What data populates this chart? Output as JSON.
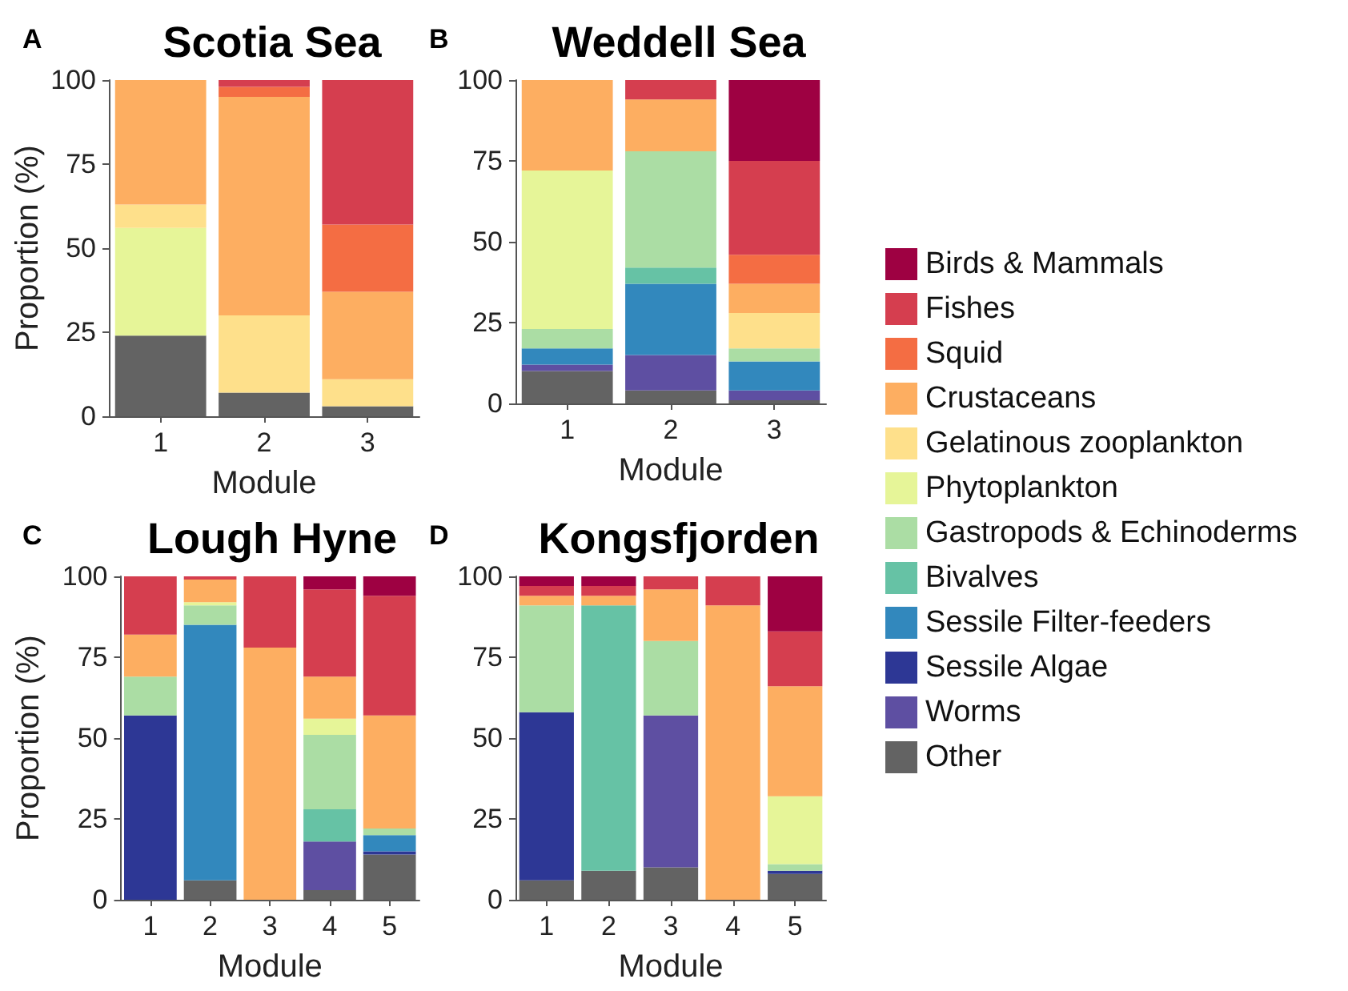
{
  "chart_data": [
    {
      "type": "bar",
      "stacked": true,
      "title": "Scotia Sea",
      "annotations": [
        "A"
      ],
      "xlabel": "Module",
      "ylabel": "Proportion (%)",
      "categories": [
        "1",
        "2",
        "3"
      ],
      "ylim": [
        0,
        100
      ],
      "yticks": [
        0,
        25,
        50,
        75,
        100
      ],
      "grid": false,
      "legend": "right",
      "series": [
        {
          "name": "Other",
          "color": "#636363",
          "values": [
            24,
            7,
            3
          ]
        },
        {
          "name": "Worms",
          "color": "#5e4fa2",
          "values": [
            null,
            null,
            null
          ]
        },
        {
          "name": "Sessile Algae",
          "color": "#2d3795",
          "values": [
            null,
            null,
            null
          ]
        },
        {
          "name": "Sessile Filter-feeders",
          "color": "#3288bd",
          "values": [
            null,
            null,
            null
          ]
        },
        {
          "name": "Bivalves",
          "color": "#66c2a5",
          "values": [
            null,
            null,
            null
          ]
        },
        {
          "name": "Gastropods & Echinoderms",
          "color": "#abdda4",
          "values": [
            null,
            null,
            null
          ]
        },
        {
          "name": "Phytoplankton",
          "color": "#e6f598",
          "values": [
            32,
            null,
            null
          ]
        },
        {
          "name": "Gelatinous zooplankton",
          "color": "#fee08b",
          "values": [
            7,
            23,
            8
          ]
        },
        {
          "name": "Crustaceans",
          "color": "#fdae61",
          "values": [
            37,
            65,
            26
          ]
        },
        {
          "name": "Squid",
          "color": "#f46d43",
          "values": [
            null,
            3,
            20
          ]
        },
        {
          "name": "Fishes",
          "color": "#d53e4f",
          "values": [
            null,
            2,
            43
          ]
        },
        {
          "name": "Birds & Mammals",
          "color": "#9e0142",
          "values": [
            null,
            null,
            null
          ]
        }
      ]
    },
    {
      "type": "bar",
      "stacked": true,
      "title": "Weddell Sea",
      "annotations": [
        "B"
      ],
      "xlabel": "Module",
      "categories": [
        "1",
        "2",
        "3"
      ],
      "ylim": [
        0,
        100
      ],
      "yticks": [
        0,
        25,
        50,
        75,
        100
      ],
      "grid": false,
      "series": [
        {
          "color": "#636363",
          "values": [
            10,
            4,
            1
          ]
        },
        {
          "color": "#5e4fa2",
          "values": [
            2,
            11,
            3
          ]
        },
        {
          "color": "#3288bd",
          "values": [
            5,
            22,
            9
          ]
        },
        {
          "color": "#66c2a5",
          "values": [
            null,
            5,
            null
          ]
        },
        {
          "color": "#abdda4",
          "values": [
            6,
            36,
            4
          ]
        },
        {
          "color": "#e6f598",
          "values": [
            49,
            null,
            null
          ]
        },
        {
          "color": "#fee08b",
          "values": [
            null,
            null,
            11
          ]
        },
        {
          "color": "#fdae61",
          "values": [
            28,
            16,
            9
          ]
        },
        {
          "color": "#f46d43",
          "values": [
            null,
            null,
            9
          ]
        },
        {
          "color": "#d53e4f",
          "values": [
            null,
            6,
            29
          ]
        },
        {
          "color": "#9e0142",
          "values": [
            null,
            null,
            25
          ]
        }
      ]
    },
    {
      "type": "bar",
      "stacked": true,
      "title": "Lough Hyne",
      "annotations": [
        "C"
      ],
      "xlabel": "Module",
      "ylabel": "Proportion (%)",
      "categories": [
        "1",
        "2",
        "3",
        "4",
        "5"
      ],
      "ylim": [
        0,
        100
      ],
      "yticks": [
        0,
        25,
        50,
        75,
        100
      ],
      "grid": false,
      "series": [
        {
          "color": "#636363",
          "values": [
            null,
            6,
            null,
            3,
            14
          ]
        },
        {
          "color": "#5e4fa2",
          "values": [
            null,
            null,
            null,
            15,
            null
          ]
        },
        {
          "color": "#2d3795",
          "values": [
            57,
            null,
            null,
            null,
            1
          ]
        },
        {
          "color": "#3288bd",
          "values": [
            null,
            79,
            null,
            null,
            5
          ]
        },
        {
          "color": "#66c2a5",
          "values": [
            null,
            null,
            null,
            10,
            null
          ]
        },
        {
          "color": "#abdda4",
          "values": [
            12,
            6,
            null,
            23,
            2
          ]
        },
        {
          "color": "#e6f598",
          "values": [
            null,
            1,
            null,
            5,
            null
          ]
        },
        {
          "color": "#fdae61",
          "values": [
            13,
            7,
            78,
            13,
            35
          ]
        },
        {
          "color": "#d53e4f",
          "values": [
            18,
            1,
            22,
            27,
            37
          ]
        },
        {
          "color": "#9e0142",
          "values": [
            null,
            null,
            null,
            4,
            6
          ]
        }
      ]
    },
    {
      "type": "bar",
      "stacked": true,
      "title": "Kongsfjorden",
      "annotations": [
        "D"
      ],
      "xlabel": "Module",
      "categories": [
        "1",
        "2",
        "3",
        "4",
        "5"
      ],
      "ylim": [
        0,
        100
      ],
      "yticks": [
        0,
        25,
        50,
        75,
        100
      ],
      "grid": false,
      "series": [
        {
          "color": "#636363",
          "values": [
            6,
            9,
            10,
            null,
            8
          ]
        },
        {
          "color": "#5e4fa2",
          "values": [
            null,
            null,
            47,
            null,
            null
          ]
        },
        {
          "color": "#2d3795",
          "values": [
            52,
            null,
            null,
            null,
            1
          ]
        },
        {
          "color": "#66c2a5",
          "values": [
            null,
            82,
            null,
            null,
            null
          ]
        },
        {
          "color": "#abdda4",
          "values": [
            33,
            null,
            23,
            null,
            2
          ]
        },
        {
          "color": "#e6f598",
          "values": [
            null,
            null,
            null,
            null,
            21
          ]
        },
        {
          "color": "#fdae61",
          "values": [
            3,
            3,
            16,
            91,
            34
          ]
        },
        {
          "color": "#d53e4f",
          "values": [
            3,
            3,
            4,
            9,
            17
          ]
        },
        {
          "color": "#9e0142",
          "values": [
            3,
            3,
            null,
            null,
            17
          ]
        }
      ]
    }
  ]
}
